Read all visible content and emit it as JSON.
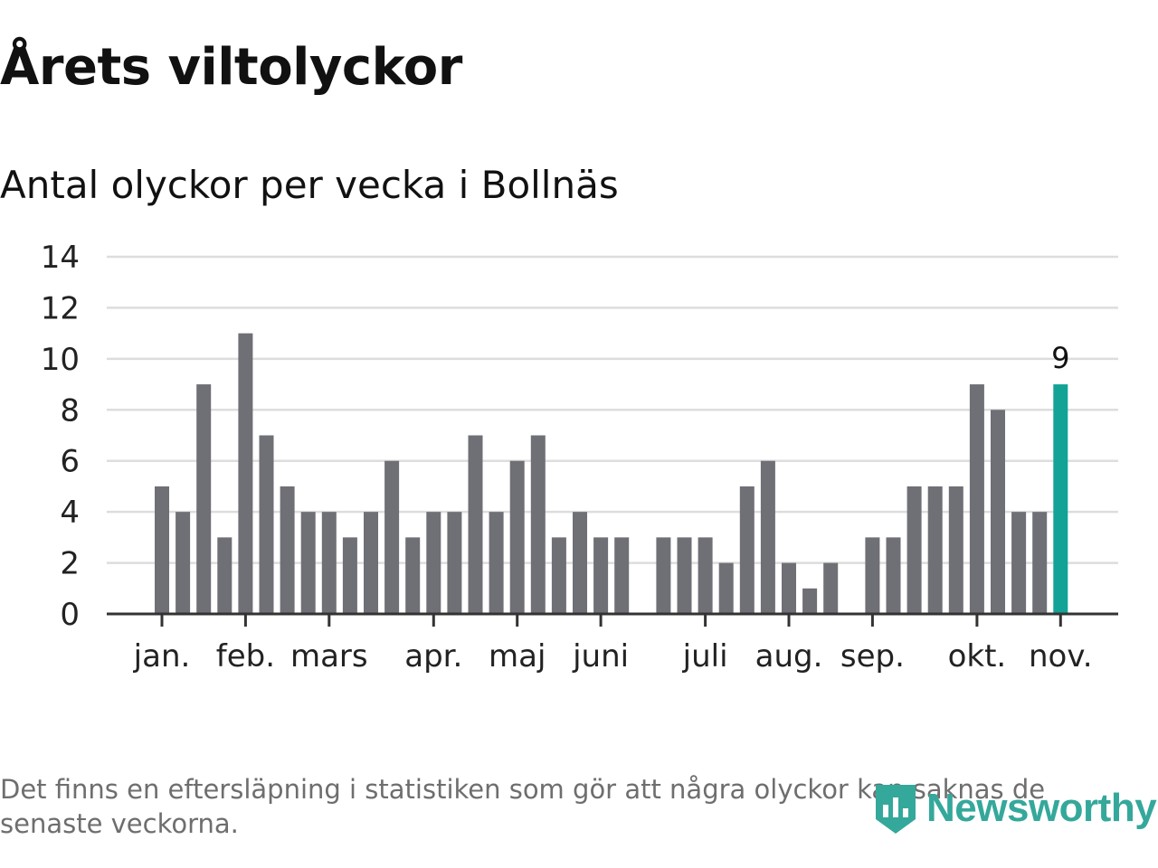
{
  "chart_data": {
    "type": "bar",
    "title": "Årets viltolyckor",
    "subtitle": "Antal olyckor per vecka i Bollnäs",
    "xlabel": "",
    "ylabel": "",
    "ylim": [
      0,
      14
    ],
    "yticks": [
      "0",
      "2",
      "4",
      "6",
      "8",
      "10",
      "12",
      "14"
    ],
    "grid": true,
    "x_labels": [
      {
        "label": "jan.",
        "week": 1
      },
      {
        "label": "feb.",
        "week": 5
      },
      {
        "label": "mars",
        "week": 9
      },
      {
        "label": "apr.",
        "week": 14
      },
      {
        "label": "maj",
        "week": 18
      },
      {
        "label": "juni",
        "week": 22
      },
      {
        "label": "juli",
        "week": 27
      },
      {
        "label": "aug.",
        "week": 31
      },
      {
        "label": "sep.",
        "week": 35
      },
      {
        "label": "okt.",
        "week": 40
      },
      {
        "label": "nov.",
        "week": 44
      }
    ],
    "weeks": [
      1,
      2,
      3,
      4,
      5,
      6,
      7,
      8,
      9,
      10,
      11,
      12,
      13,
      14,
      15,
      16,
      17,
      18,
      19,
      20,
      21,
      22,
      23,
      24,
      25,
      26,
      27,
      28,
      29,
      30,
      31,
      32,
      33,
      34,
      35,
      36,
      37,
      38,
      39,
      40,
      41,
      42,
      43,
      44
    ],
    "values": [
      5,
      4,
      9,
      3,
      11,
      7,
      5,
      4,
      4,
      3,
      4,
      6,
      3,
      4,
      4,
      7,
      4,
      6,
      7,
      3,
      4,
      3,
      3,
      0,
      3,
      3,
      3,
      2,
      5,
      6,
      2,
      1,
      2,
      0,
      3,
      3,
      5,
      5,
      5,
      9,
      8,
      4,
      4,
      9
    ],
    "highlight": {
      "index": 43,
      "label": "9",
      "color": "#12a396"
    },
    "bar_color": "#6f6f76",
    "grid_color": "#dddddd",
    "axis_color": "#333333"
  },
  "footnote": "Det finns en eftersläpning i statistiken som gör att några olyckor kan saknas de senaste veckorna.",
  "logo": {
    "text": "Newsworthy",
    "color": "#34a89b",
    "icon": "newsworthy-bar-icon"
  }
}
